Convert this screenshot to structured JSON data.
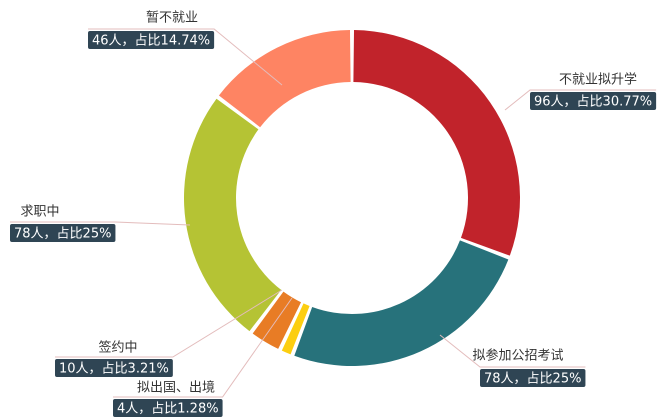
{
  "chart_data": {
    "type": "donut",
    "categories": [
      "不就业拟升学",
      "拟参加公招考试",
      "拟出国、出境",
      "签约中",
      "求职中",
      "暂不就业"
    ],
    "values": [
      96,
      78,
      4,
      10,
      78,
      46
    ],
    "value_labels": [
      "96人，占比30.77%",
      "78人，占比25%",
      "4人，占比1.28%",
      "10人，占比3.21%",
      "78人，占比25%",
      "46人，占比14.74%"
    ],
    "colors": [
      "#c1232b",
      "#27727b",
      "#fcce10",
      "#e87c25",
      "#b5c334",
      "#fe8463"
    ]
  }
}
